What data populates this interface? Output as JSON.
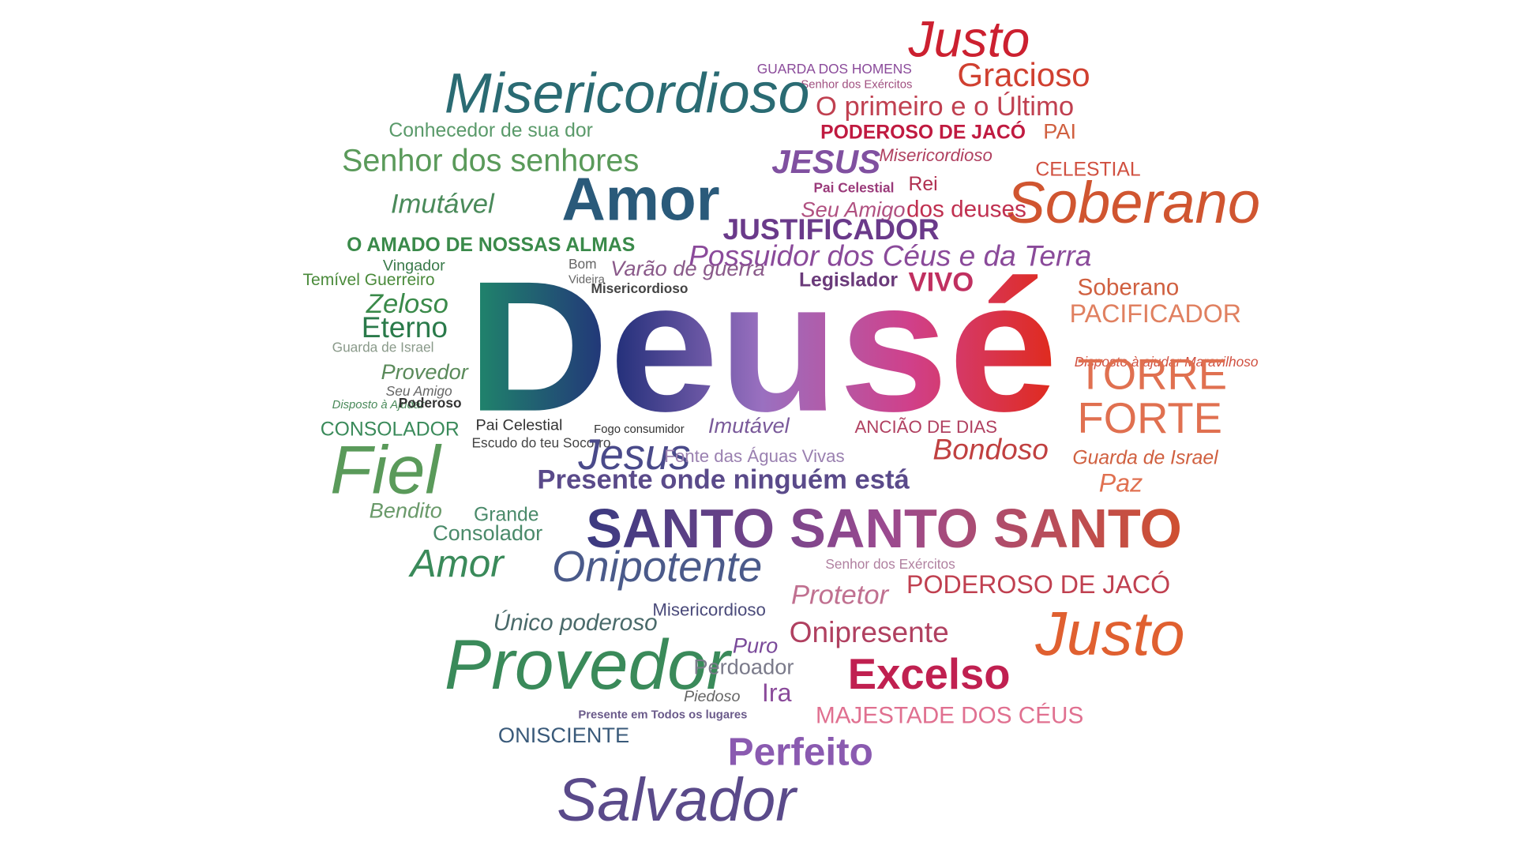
{
  "words": [
    "Justo",
    "GUARDA DOS HOMENS",
    "Gracioso",
    "Senhor dos Exércitos",
    "Misericordioso",
    "O primeiro e o Último",
    "Conhecedor de sua dor",
    "PODEROSO DE JACÓ",
    "PAI",
    "Senhor dos senhores",
    "JESUS",
    "Misericordioso",
    "CELESTIAL",
    "Amor",
    "Pai Celestial",
    "Rei",
    "Soberano",
    "Imutável",
    "Seu Amigo",
    "dos deuses",
    "JUSTIFICADOR",
    "O AMADO DE NOSSAS ALMAS",
    "Possuidor dos Céus e da Terra",
    "Vingador",
    "Temível Guerreiro",
    "Bom",
    "Varão de guerra",
    "Videira",
    "Misericordioso",
    "Legislador",
    "VIVO",
    "Soberano",
    "Zeloso",
    "Eterno",
    "PACIFICADOR",
    "Guarda de Israel",
    "Disposto à ajudar Maravilhoso",
    "Provedor",
    "TORRE",
    "FORTE",
    "Seu Amigo",
    "Disposto à Ajudar",
    "Poderoso",
    "CONSOLADOR",
    "Pai Celestial",
    "Fogo consumidor",
    "Imutável",
    "ANCIÃO DE DIAS",
    "Escudo do teu Socorro",
    "Jesus",
    "Fonte das Águas Vivas",
    "Bondoso",
    "Guarda de Israel",
    "Fiel",
    "Presente onde ninguém está",
    "Paz",
    "Bendito",
    "Grande",
    "SANTO SANTO SANTO",
    "Consolador",
    "Amor",
    "Onipotente",
    "Senhor dos Exércitos",
    "PODEROSO DE JACÓ",
    "Protetor",
    "Único poderoso",
    "Misericordioso",
    "Onipresente",
    "Justo",
    "Provedor",
    "Puro",
    "Perdoador",
    "Excelso",
    "Piedoso",
    "Ira",
    "MAJESTADE DOS CÉUS",
    "Presente em Todos os lugares",
    "ONISCIENTE",
    "Perfeito",
    "Salvador",
    "Deusé"
  ]
}
